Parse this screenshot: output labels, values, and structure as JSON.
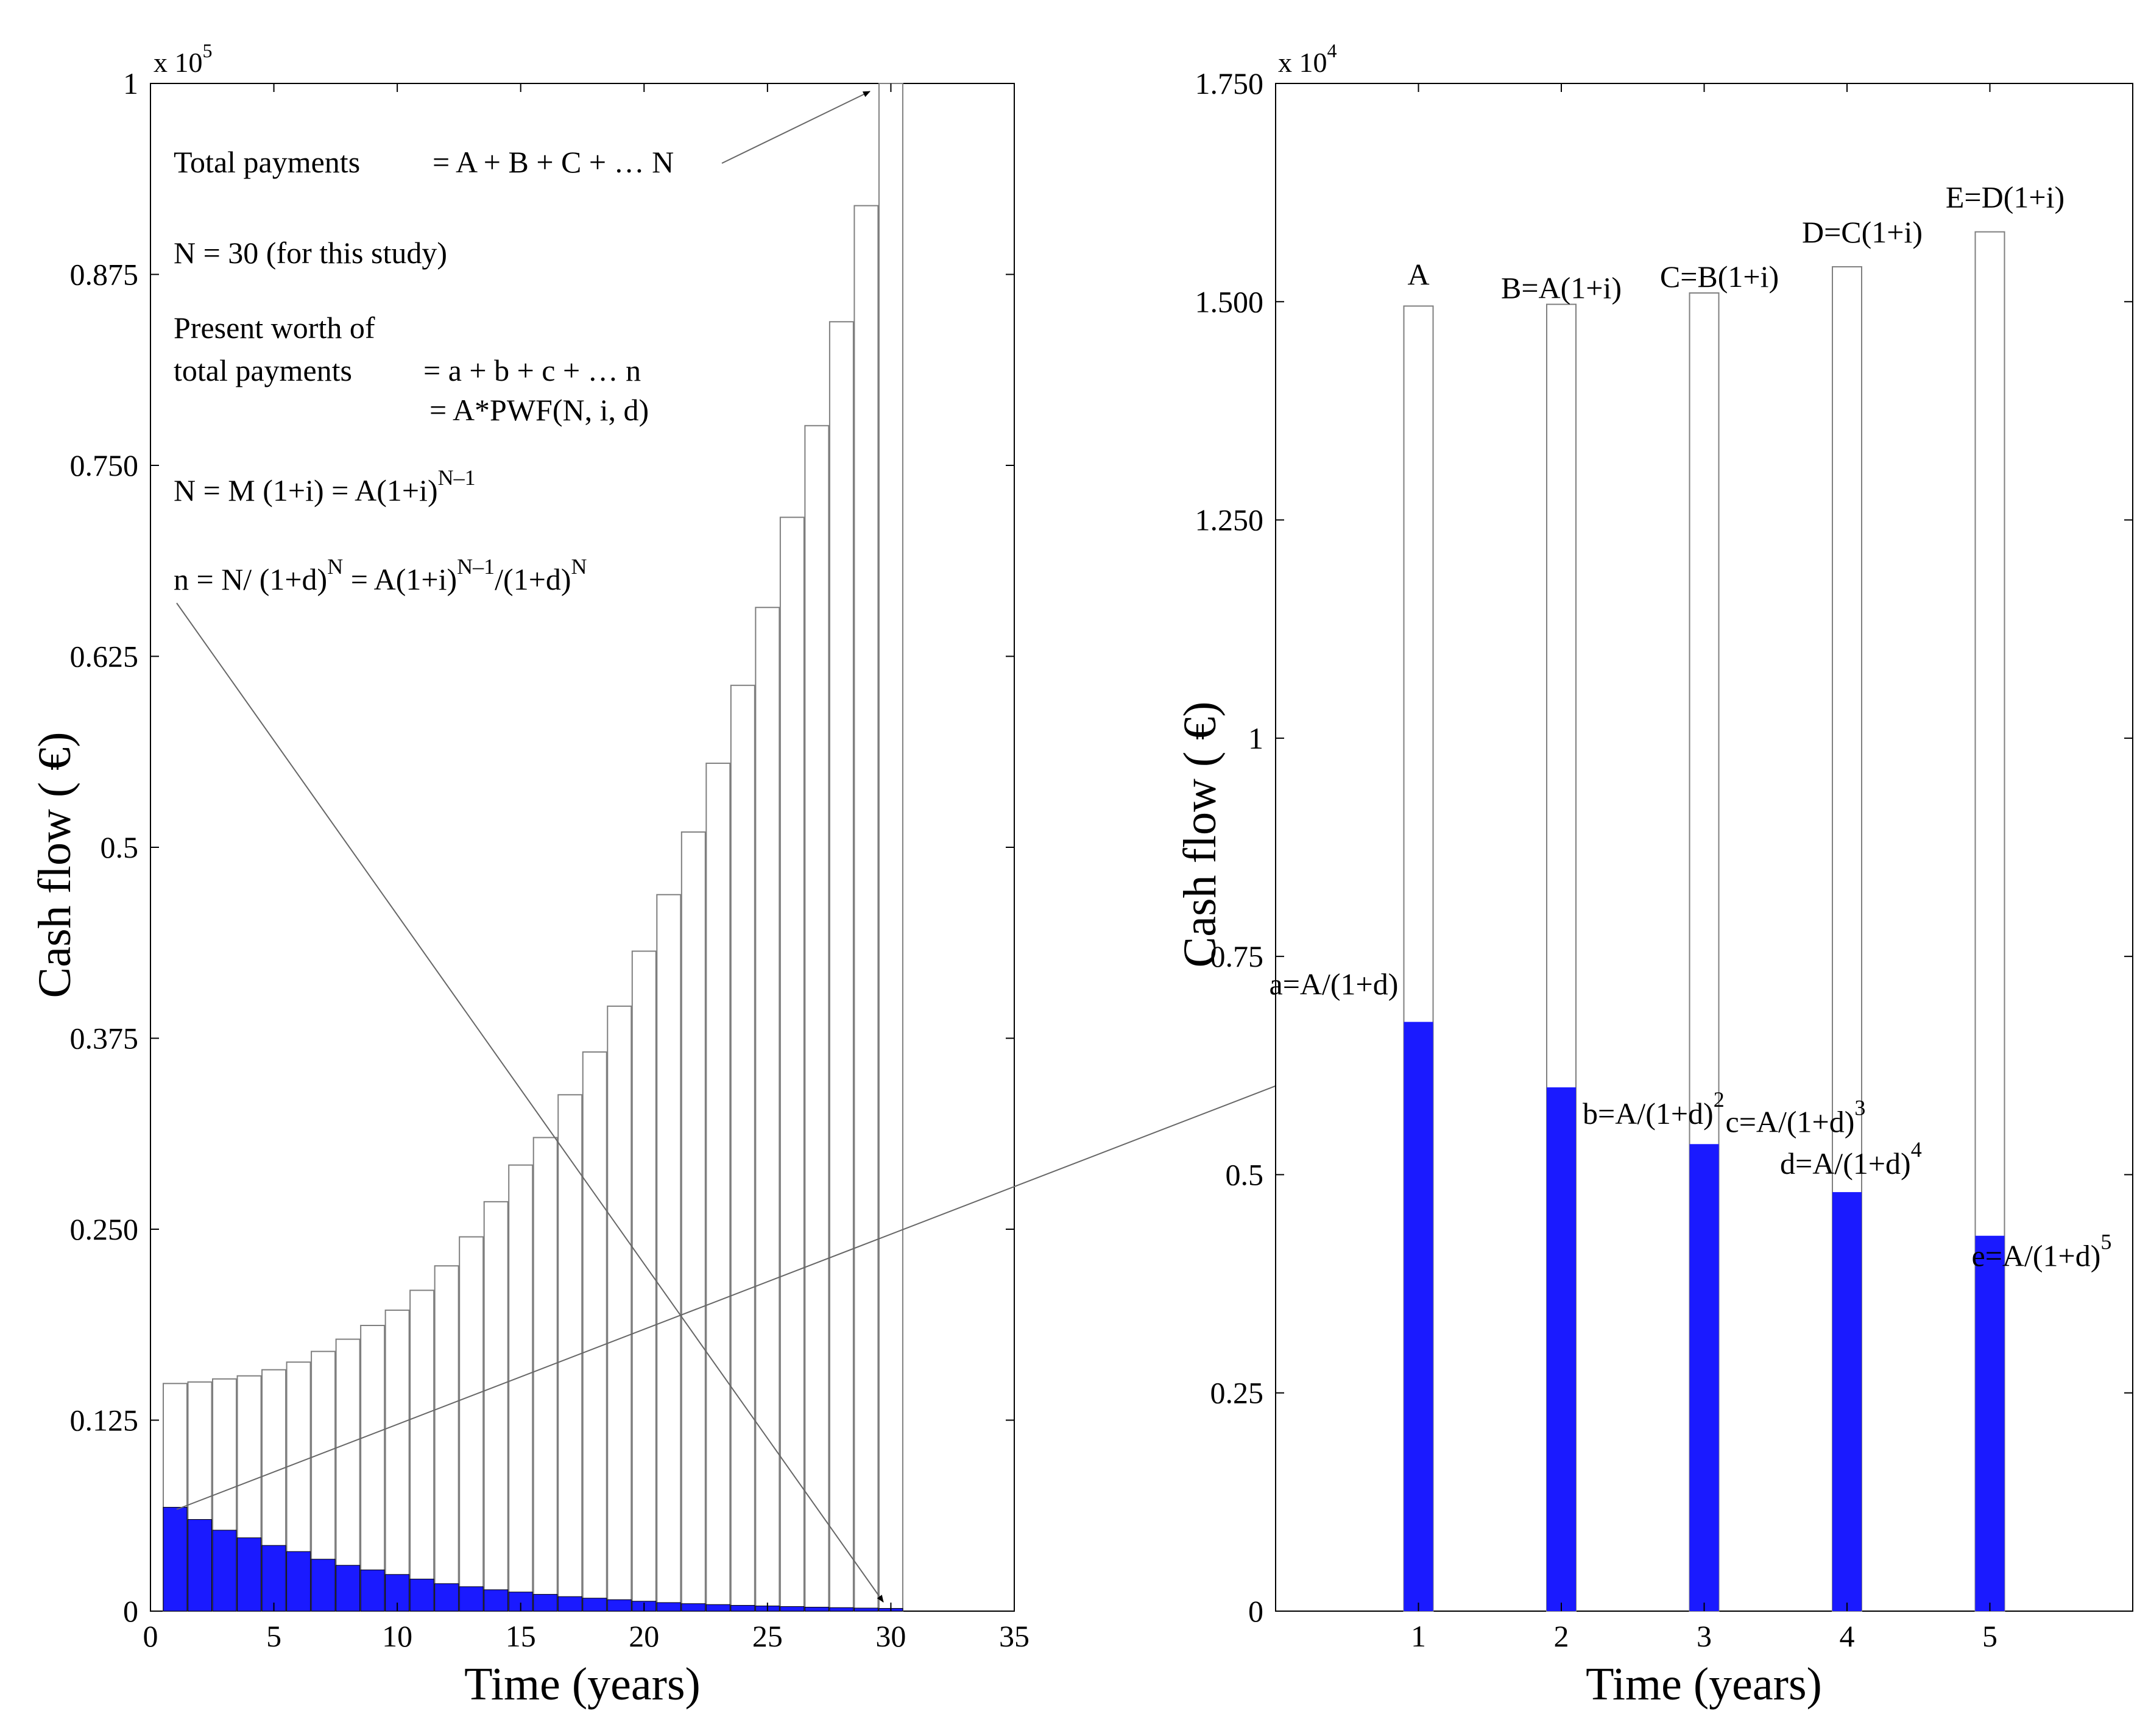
{
  "colors": {
    "discounted": "#1a1aff",
    "outline": "#7f7f7f",
    "arrow": "#6e6e6e"
  },
  "chart_data": [
    {
      "type": "bar",
      "title": "",
      "xlabel": "Time (years)",
      "ylabel": "Cash flow ( €)",
      "y_exponent_label": "x 10",
      "y_exponent_power": "5",
      "xlim": [
        0,
        35
      ],
      "ylim": [
        0,
        100000
      ],
      "x_ticks": [
        0,
        5,
        10,
        15,
        20,
        25,
        30,
        35
      ],
      "x_tick_labels": [
        "0",
        "5",
        "10",
        "15",
        "20",
        "25",
        "30",
        "35"
      ],
      "y_ticks": [
        0,
        12500,
        25000,
        37500,
        50000,
        62500,
        75000,
        87500,
        100000
      ],
      "y_tick_labels": [
        "0",
        "0.125",
        "0.250",
        "0.375",
        "0.5",
        "0.625",
        "0.750",
        "0.875",
        "1"
      ],
      "grid": false,
      "x": [
        1,
        2,
        3,
        4,
        5,
        6,
        7,
        8,
        9,
        10,
        11,
        12,
        13,
        14,
        15,
        16,
        17,
        18,
        19,
        20,
        21,
        22,
        23,
        24,
        25,
        26,
        27,
        28,
        29,
        30
      ],
      "series": [
        {
          "name": "Total payments",
          "style": "outline",
          "values": [
            14900,
            15000,
            15200,
            15400,
            15800,
            16300,
            17000,
            17800,
            18700,
            19700,
            21000,
            22600,
            24500,
            26800,
            29200,
            31000,
            33800,
            36600,
            39600,
            43200,
            46900,
            51000,
            55500,
            60600,
            65700,
            71600,
            77600,
            84400,
            92000,
            100000
          ]
        },
        {
          "name": "Present worth",
          "style": "filled",
          "values": [
            6800,
            6000,
            5300,
            4800,
            4300,
            3900,
            3400,
            3000,
            2700,
            2400,
            2100,
            1800,
            1600,
            1400,
            1250,
            1100,
            950,
            850,
            750,
            650,
            560,
            490,
            430,
            380,
            340,
            300,
            260,
            230,
            200,
            180
          ]
        }
      ],
      "annotations": [
        {
          "id": "total",
          "parts": [
            "Total payments",
            "= A + B + C + … N"
          ]
        },
        {
          "id": "n30",
          "text": "N = 30 (for this study)"
        },
        {
          "id": "pw",
          "lines": [
            "Present worth of",
            "total payments",
            "= a + b + c + … n",
            "= A*PWF(N, i, d)"
          ]
        },
        {
          "id": "nm",
          "text": "N = M (1+i) = A(1+i)",
          "sup": "N–1"
        },
        {
          "id": "nn",
          "parts": [
            "n = N/ (1+d)",
            "N",
            " = A(1+i)",
            "N–1",
            "/(1+d)",
            "N"
          ]
        }
      ]
    },
    {
      "type": "bar",
      "title": "",
      "xlabel": "Time (years)",
      "ylabel": "Cash flow ( €)",
      "y_exponent_label": "x 10",
      "y_exponent_power": "4",
      "xlim": [
        0,
        6
      ],
      "ylim": [
        0,
        17500
      ],
      "x_ticks": [
        1,
        2,
        3,
        4,
        5
      ],
      "x_tick_labels": [
        "1",
        "2",
        "3",
        "4",
        "5"
      ],
      "y_ticks": [
        0,
        2500,
        5000,
        7500,
        10000,
        12500,
        15000,
        17500
      ],
      "y_tick_labels": [
        "0",
        "0.25",
        "0.5",
        "0.75",
        "1",
        "1.250",
        "1.500",
        "1.750"
      ],
      "grid": false,
      "categories": [
        "1",
        "2",
        "3",
        "4",
        "5"
      ],
      "series": [
        {
          "name": "Payments",
          "style": "outline",
          "values": [
            14950,
            14970,
            15100,
            15400,
            15800
          ],
          "labels": [
            "A",
            "B=A(1+i)",
            "C=B(1+i)",
            "D=C(1+i)",
            "E=D(1+i)"
          ]
        },
        {
          "name": "Present worth",
          "style": "filled",
          "values": [
            6750,
            6000,
            5350,
            4800,
            4300
          ],
          "labels": [
            "a=A/(1+d)",
            "b=A/(1+d)",
            "c=A/(1+d)",
            "d=A/(1+d)",
            "e=A/(1+d)"
          ],
          "label_sups": [
            "",
            "2",
            "3",
            "4",
            "5"
          ]
        }
      ]
    }
  ]
}
